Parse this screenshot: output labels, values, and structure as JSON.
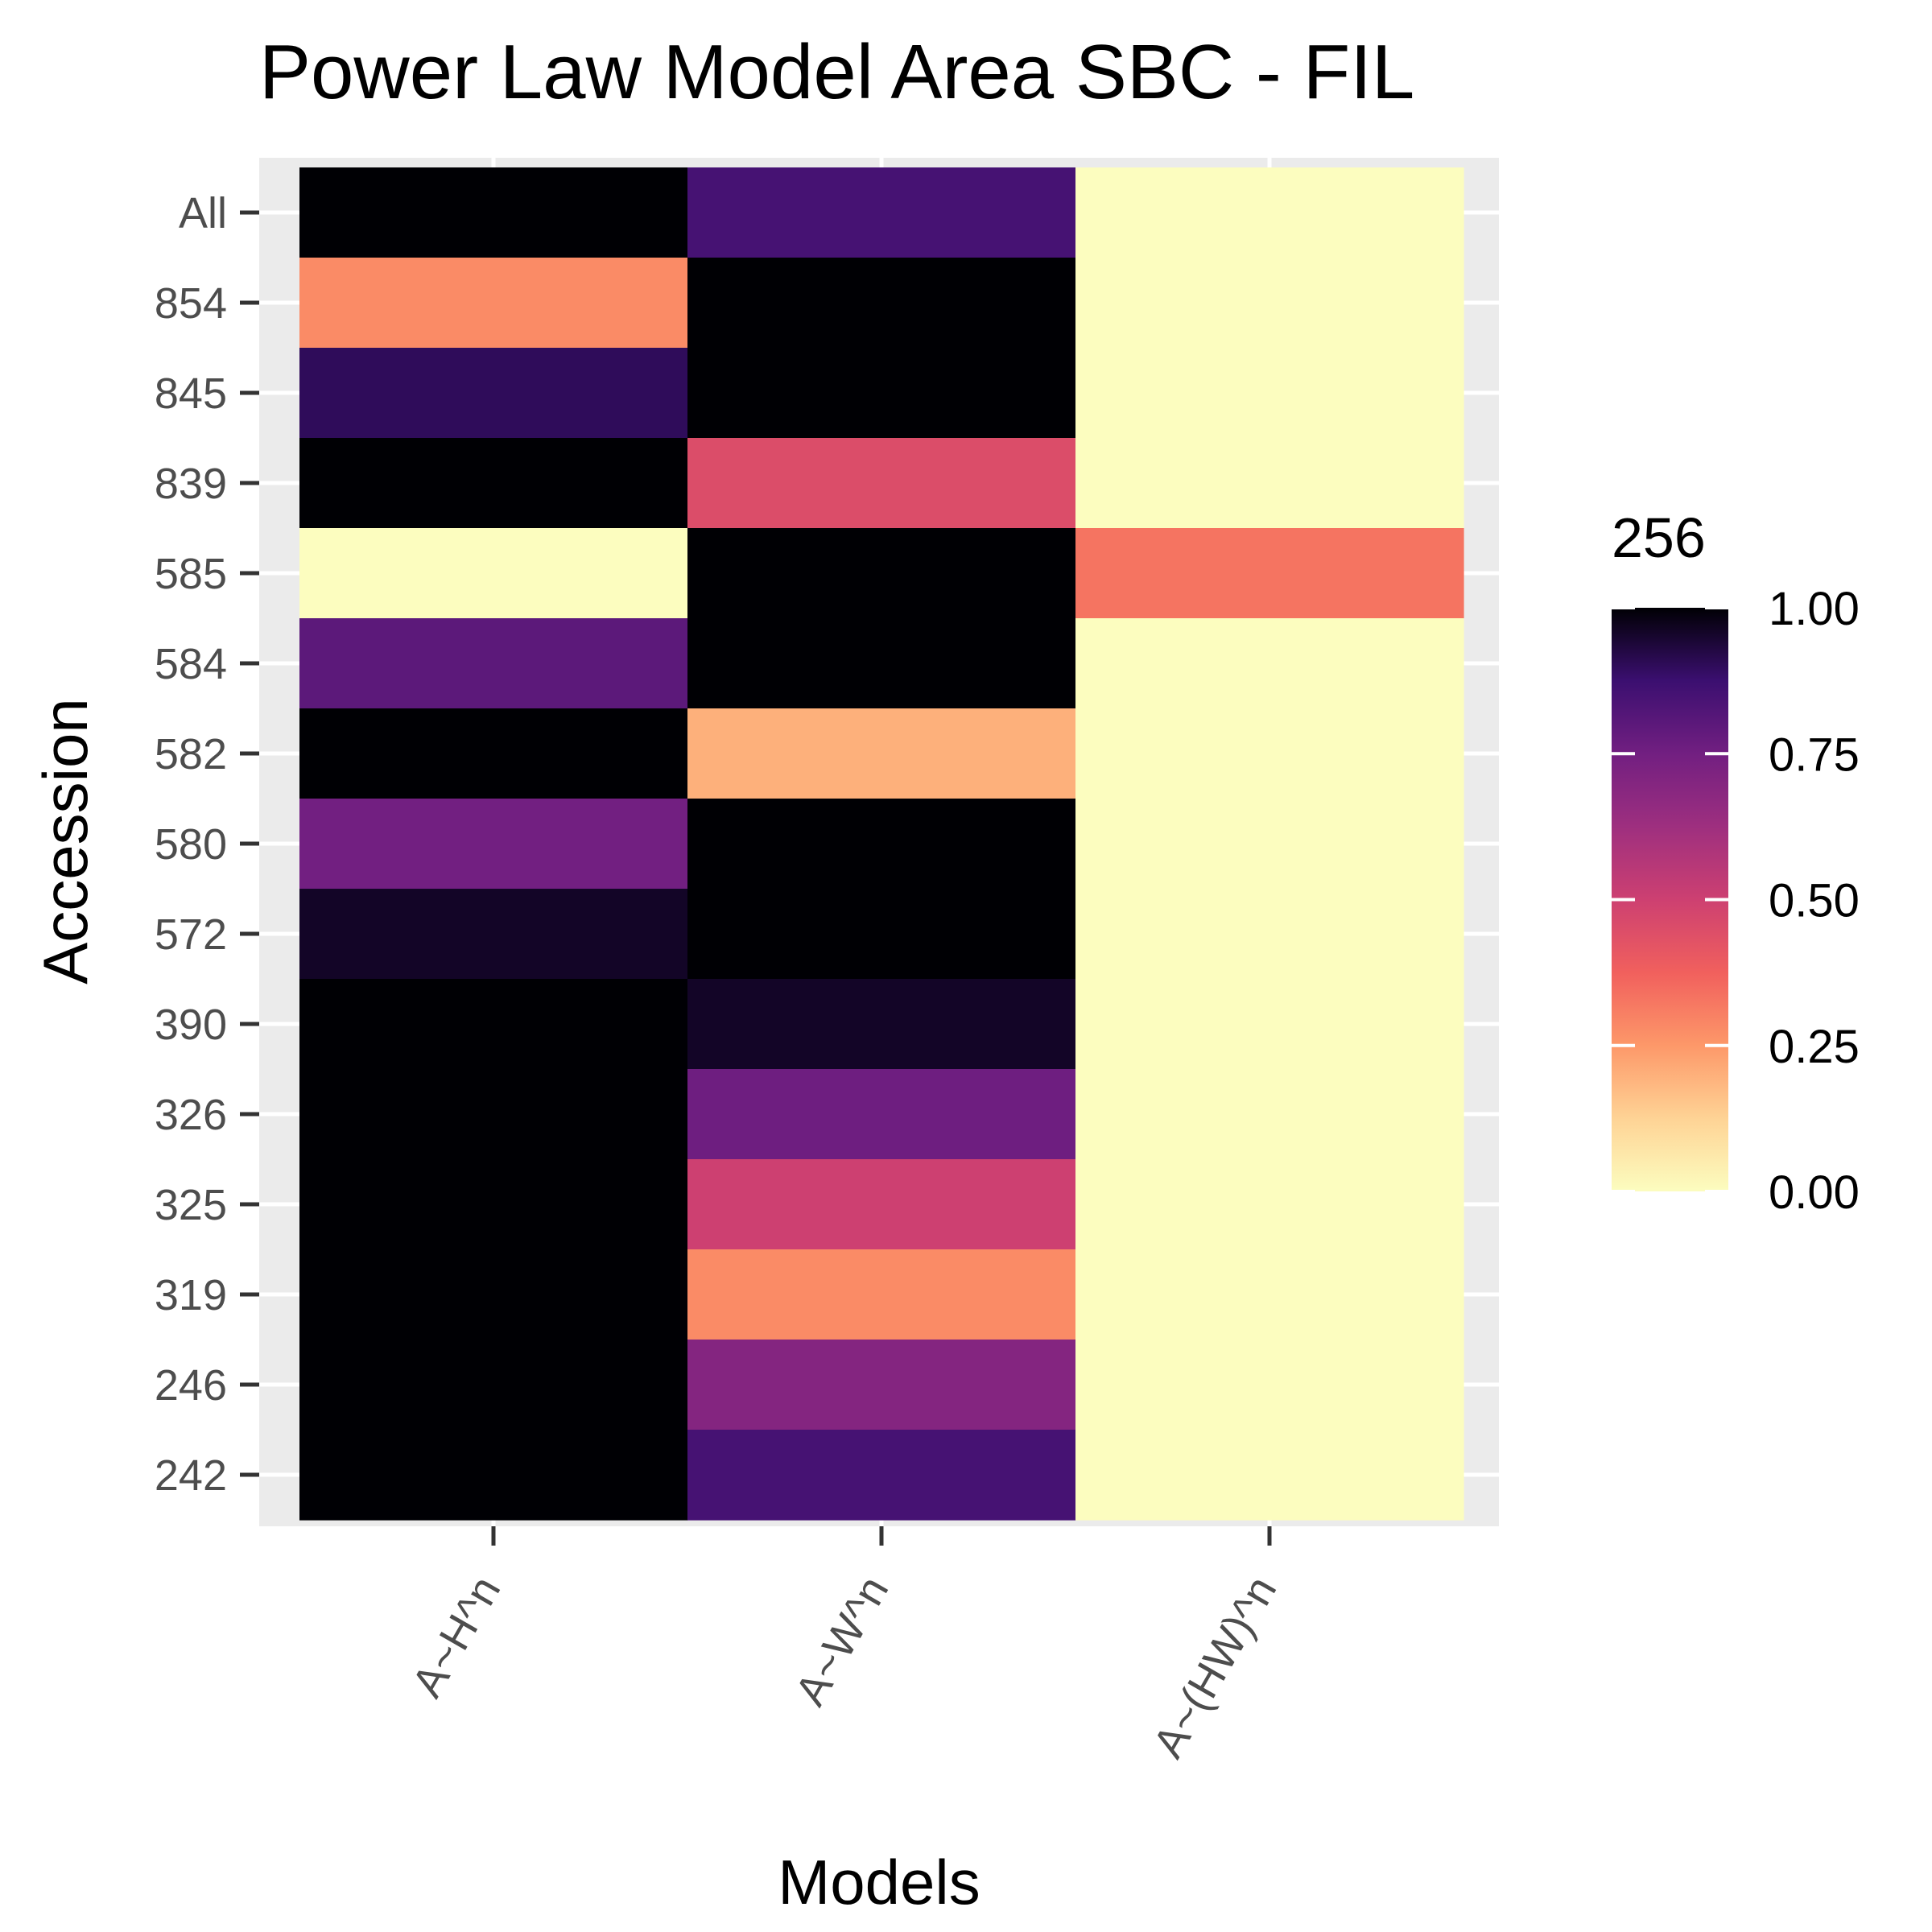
{
  "chart_data": {
    "type": "heatmap",
    "title": "Power Law Model Area SBC - FIL",
    "xlabel": "Models",
    "ylabel": "Accession",
    "x_categories": [
      "A~H^n",
      "A~W^n",
      "A~(HW)^n"
    ],
    "y_categories": [
      "All",
      "854",
      "845",
      "839",
      "585",
      "584",
      "582",
      "580",
      "572",
      "390",
      "326",
      "325",
      "319",
      "246",
      "242"
    ],
    "values": [
      [
        1.0,
        0.85,
        0.0
      ],
      [
        0.28,
        1.0,
        0.0
      ],
      [
        0.9,
        1.0,
        0.0
      ],
      [
        1.0,
        0.45,
        0.0
      ],
      [
        0.0,
        1.0,
        0.33
      ],
      [
        0.8,
        1.0,
        0.0
      ],
      [
        1.0,
        0.2,
        0.0
      ],
      [
        0.75,
        1.0,
        0.0
      ],
      [
        0.96,
        1.0,
        0.0
      ],
      [
        1.0,
        0.96,
        0.0
      ],
      [
        1.0,
        0.76,
        0.0
      ],
      [
        1.0,
        0.5,
        0.0
      ],
      [
        1.0,
        0.28,
        0.0
      ],
      [
        1.0,
        0.7,
        0.0
      ],
      [
        1.0,
        0.85,
        0.0
      ]
    ],
    "legend": {
      "title": "256",
      "position": "right",
      "ticks": [
        1.0,
        0.75,
        0.5,
        0.25,
        0.0
      ],
      "tick_labels": [
        "1.00",
        "0.75",
        "0.50",
        "0.25",
        "0.00"
      ],
      "range": [
        0,
        1
      ],
      "colormap": "magma (reversed)"
    },
    "grid": true,
    "panel_background": "#ebebeb"
  }
}
